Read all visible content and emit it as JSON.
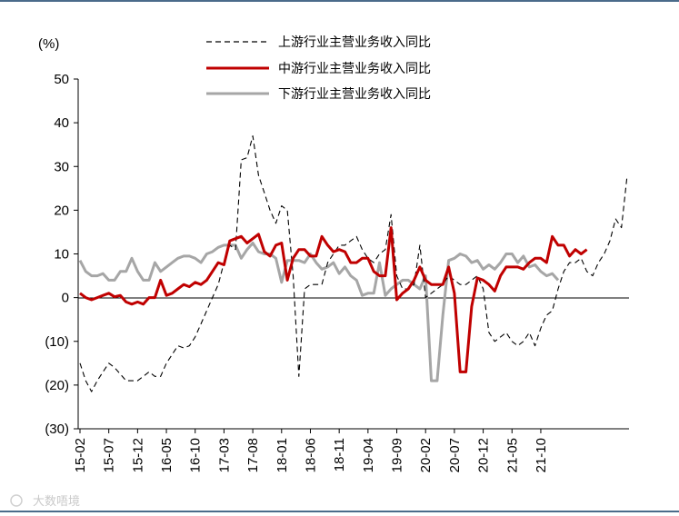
{
  "colors": {
    "upstream": "#000000",
    "midstream": "#c00000",
    "downstream": "#a6a6a6",
    "frame": "#4a6b8a"
  },
  "watermark": "大数唔境",
  "chart_data": {
    "type": "line",
    "title": "",
    "xlabel": "",
    "ylabel": "(%)",
    "ylim": [
      -30,
      50
    ],
    "yticks": [
      50,
      40,
      30,
      20,
      10,
      0,
      -10,
      -20,
      -30
    ],
    "ytick_labels": [
      "50",
      "40",
      "30",
      "20",
      "10",
      "0",
      "(10)",
      "(20)",
      "(30)"
    ],
    "xtick_labels": [
      "15-02",
      "15-07",
      "15-12",
      "16-05",
      "16-10",
      "17-03",
      "17-08",
      "18-01",
      "18-06",
      "18-11",
      "19-04",
      "19-09",
      "20-02",
      "20-07",
      "20-12",
      "21-05",
      "21-10"
    ],
    "xtick_step_months": 5,
    "legend_position": "top-center",
    "series": [
      {
        "name": "上游行业主营业务收入同比",
        "style": "dashed",
        "values": [
          -15,
          -19,
          -21.5,
          -19,
          -17,
          -15,
          -16,
          -17.5,
          -19,
          -19,
          -19,
          -18,
          -17,
          -18,
          -18,
          -15,
          -13,
          -11,
          -11.5,
          -11,
          -9,
          -6,
          -3,
          0,
          3,
          8,
          12,
          11,
          31.5,
          32,
          37,
          28,
          24,
          20,
          17,
          21,
          20,
          5,
          -18,
          2,
          3,
          3,
          3,
          8,
          10,
          12,
          12,
          13,
          14,
          11,
          9,
          8,
          10,
          11,
          19,
          5,
          2,
          2,
          3,
          12,
          0,
          1,
          2,
          3,
          5,
          4,
          3,
          3,
          4,
          5,
          2,
          -8,
          -10,
          -9,
          -8,
          -10,
          -11,
          -10,
          -8,
          -11,
          -7,
          -4,
          -3,
          2,
          6,
          8,
          8,
          9,
          6,
          5,
          8,
          10,
          13,
          18,
          16,
          28
        ]
      },
      {
        "name": "中游行业主营业务收入同比",
        "style": "solid",
        "values": [
          1,
          0,
          -0.5,
          0,
          0.5,
          1,
          0.2,
          0.5,
          -1,
          -1.5,
          -1,
          -1.5,
          0,
          0,
          4,
          0.5,
          1,
          2,
          3,
          2.5,
          3.5,
          3,
          4,
          6,
          8,
          7.5,
          13,
          13.5,
          14,
          12.5,
          13.5,
          14.5,
          10.5,
          9.5,
          12,
          12.5,
          4,
          9,
          11,
          11,
          9.5,
          9.5,
          14,
          12,
          10.5,
          11,
          10.5,
          8,
          8,
          9,
          9,
          6,
          5,
          5,
          16,
          -0.5,
          1,
          2,
          4,
          7,
          4,
          3,
          3,
          3,
          7,
          1,
          -17,
          -17,
          -2,
          4.5,
          4,
          3,
          1.5,
          5,
          7,
          7,
          7,
          6.5,
          8,
          9,
          9,
          8,
          14,
          12,
          12,
          9.5,
          11,
          10,
          11
        ]
      },
      {
        "name": "下游行业主营业务收入同比",
        "style": "solid",
        "values": [
          8.5,
          6,
          5,
          5,
          5.5,
          4,
          4,
          6,
          6,
          9,
          6,
          4,
          4,
          8,
          6,
          7,
          8,
          9,
          9.5,
          9.5,
          9,
          8,
          10,
          10.5,
          11.5,
          12,
          12,
          12,
          9,
          11,
          12.5,
          10.5,
          10,
          10,
          9,
          3.5,
          8.5,
          8.5,
          8.5,
          8,
          10,
          8,
          6.5,
          7,
          8,
          5.5,
          7,
          5,
          4,
          0.5,
          1,
          1,
          8,
          0.5,
          2,
          3,
          4,
          4,
          3,
          2,
          5,
          -19,
          -19,
          -4,
          8.5,
          9,
          10,
          9.5,
          8,
          8.5,
          6.5,
          7.5,
          6.5,
          8,
          10,
          10,
          8,
          9.5,
          7,
          7.5,
          6,
          5,
          5.5,
          4
        ]
      }
    ]
  }
}
